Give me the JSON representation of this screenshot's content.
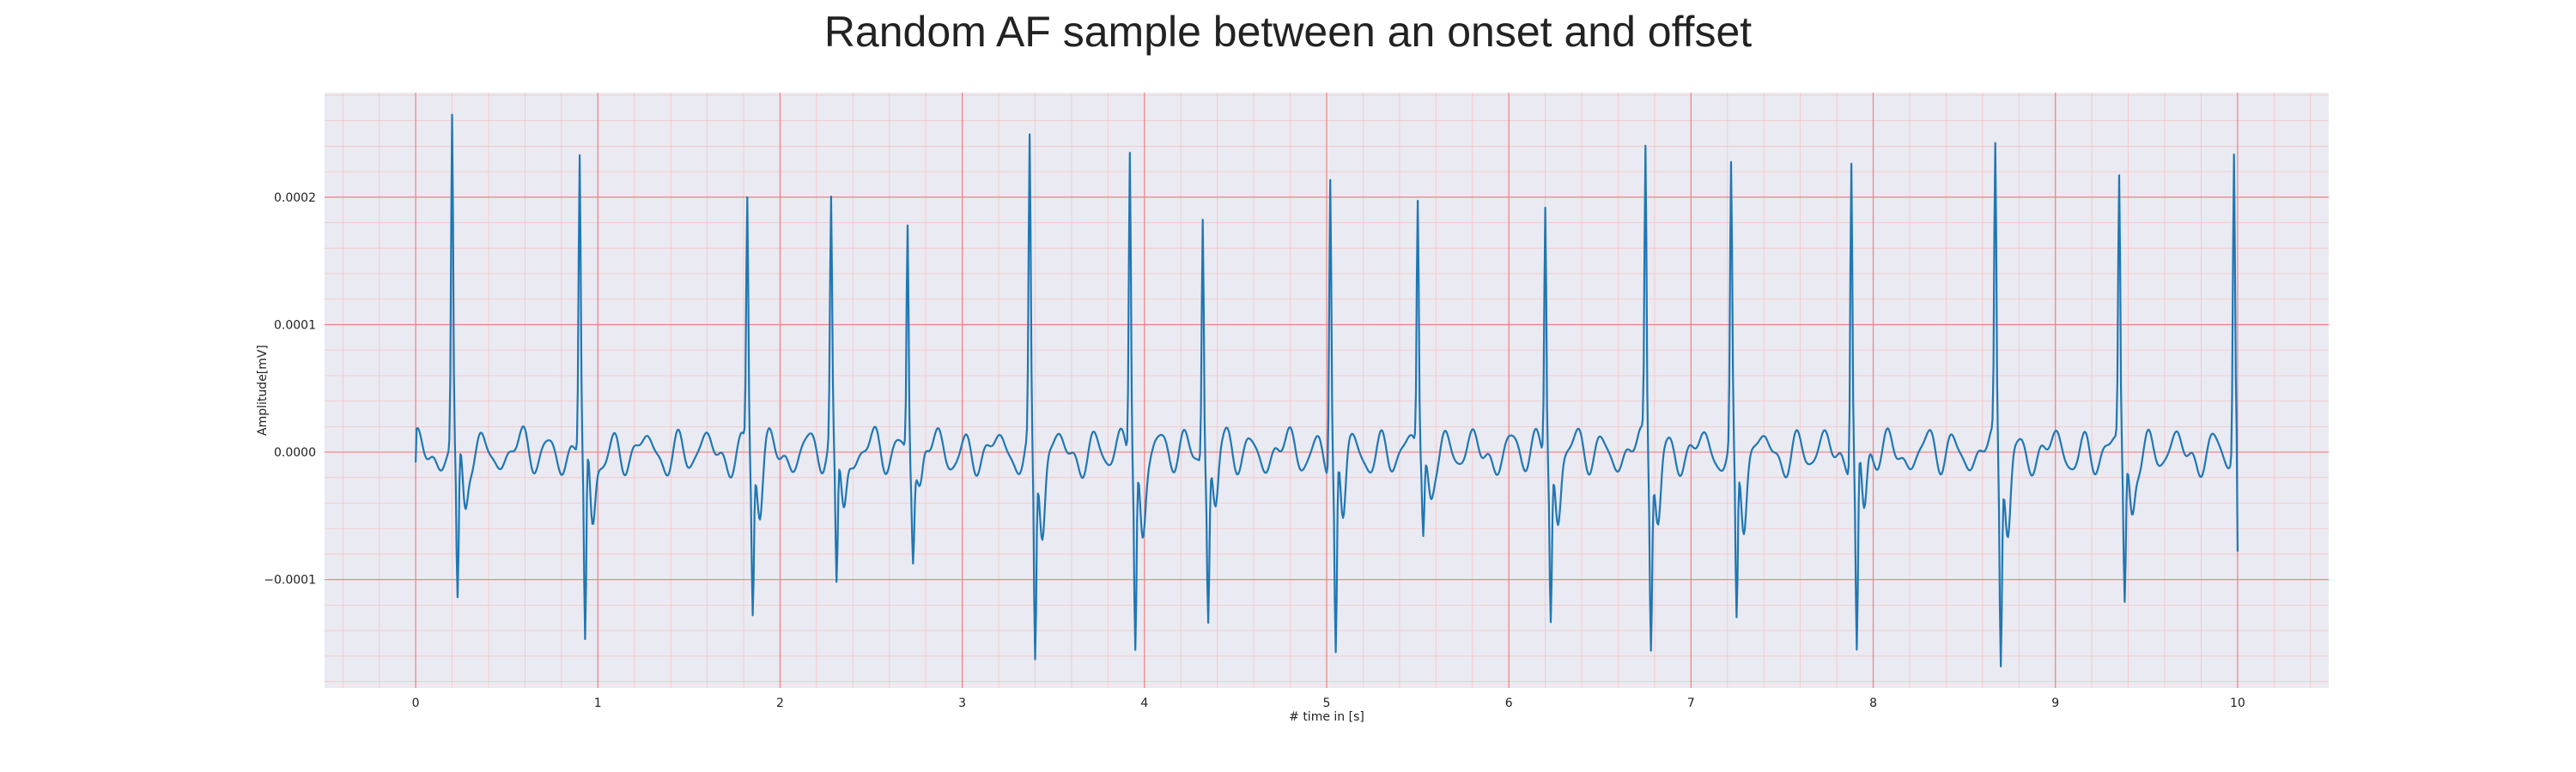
{
  "chart_data": {
    "type": "line",
    "title": "Random AF sample between an onset and offset",
    "xlabel": "# time in [s]",
    "ylabel": "Amplitude[mV]",
    "xlim": [
      -0.5,
      10.5
    ],
    "ylim": [
      -0.000185,
      0.000282
    ],
    "x_ticks": [
      0,
      1,
      2,
      3,
      4,
      5,
      6,
      7,
      8,
      9,
      10
    ],
    "x_tick_labels": [
      "0",
      "1",
      "2",
      "3",
      "4",
      "5",
      "6",
      "7",
      "8",
      "9",
      "10"
    ],
    "y_ticks": [
      -0.0001,
      0.0,
      0.0001,
      0.0002
    ],
    "y_tick_labels": [
      "−0.0001",
      "0.0000",
      "0.0001",
      "0.0002"
    ],
    "grid": true,
    "minor_grid": true,
    "colors": {
      "line": "#1f77b4",
      "grid_major": "#f08080",
      "grid_minor": "#f6c3c3",
      "plot_bg": "#eaeaf2"
    },
    "series": [
      {
        "r_peaks_s": [
          0.2,
          0.9,
          1.82,
          2.28,
          2.7,
          3.37,
          3.92,
          4.32,
          5.02,
          5.5,
          6.2,
          6.75,
          7.22,
          7.88,
          8.67,
          9.35,
          9.98
        ],
        "r_peak_values": [
          0.00026,
          0.00023,
          0.000195,
          0.00019,
          0.00018,
          0.000237,
          0.000238,
          0.00019,
          0.000225,
          0.000195,
          0.000195,
          0.000233,
          0.000218,
          0.000237,
          0.00023,
          0.00021,
          0.000232
        ],
        "s_trough_values": [
          -0.000128,
          -0.000163,
          -0.000123,
          -0.00011,
          -7e-05,
          -0.000162,
          -0.000152,
          -0.000123,
          -0.000158,
          -6.5e-05,
          -0.000127,
          -0.000142,
          -0.000137,
          -0.00016,
          -0.00016,
          -0.000118,
          -7.7e-05
        ],
        "baseline_mean": 0.0,
        "baseline_amplitude": 2e-05,
        "start_value": -8e-06,
        "end_value": -7.8e-05
      }
    ]
  }
}
